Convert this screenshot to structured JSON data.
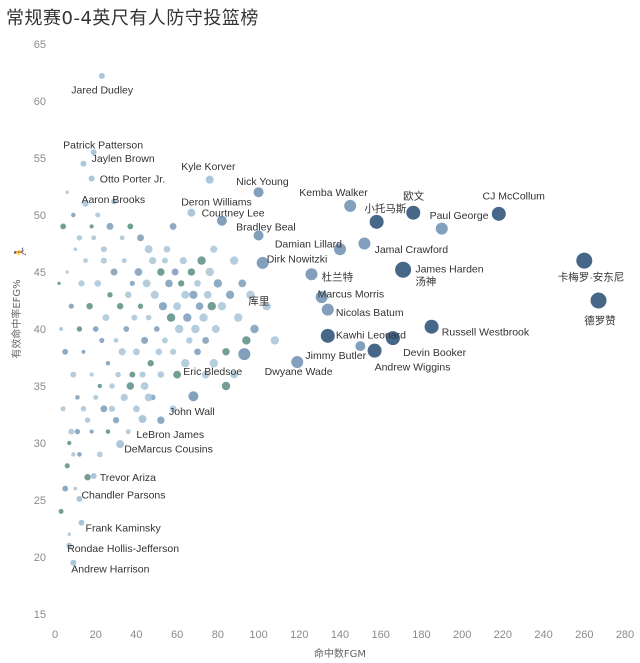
{
  "title": "常规赛0-4英尺有人防守投篮榜",
  "chart_data": {
    "type": "scatter",
    "title": "常规赛0-4英尺有人防守投篮榜",
    "xlabel": "命中数FGM",
    "ylabel": "有效命中率EFG%",
    "xlim": [
      0,
      280
    ],
    "ylim": [
      15,
      65
    ],
    "xticks": [
      0,
      20,
      40,
      60,
      80,
      100,
      120,
      140,
      160,
      180,
      200,
      220,
      240,
      260,
      280
    ],
    "yticks": [
      15,
      20,
      25,
      30,
      35,
      40,
      45,
      50,
      55,
      60,
      65
    ],
    "grid": false,
    "colors": {
      "dark": "#3d5f82",
      "mid": "#7b9bb8",
      "light": "#a9c4d8",
      "teal": "#5b8d84"
    },
    "labeled_points": [
      {
        "name": "Jared Dudley",
        "x": 23,
        "y": 62.2,
        "lx": 8,
        "ly": 61,
        "size": 3
      },
      {
        "name": "Patrick Patterson",
        "x": 19,
        "y": 55.5,
        "lx": 4,
        "ly": 56.2,
        "size": 3
      },
      {
        "name": "Jaylen Brown",
        "x": 14,
        "y": 54.5,
        "lx": 18,
        "ly": 55,
        "size": 3
      },
      {
        "name": "Otto Porter Jr.",
        "x": 18,
        "y": 53.2,
        "lx": 22,
        "ly": 53.2,
        "size": 3
      },
      {
        "name": "Aaron Brooks",
        "x": 29,
        "y": 51.2,
        "lx": 13,
        "ly": 51.4,
        "size": 3
      },
      {
        "name": "Kyle Korver",
        "x": 76,
        "y": 53.1,
        "lx": 62,
        "ly": 54.3,
        "size": 4
      },
      {
        "name": "Nick Young",
        "x": 100,
        "y": 52,
        "lx": 89,
        "ly": 53,
        "size": 5
      },
      {
        "name": "Deron Williams",
        "x": 67,
        "y": 50.2,
        "lx": 62,
        "ly": 51.2,
        "size": 4
      },
      {
        "name": "Courtney Lee",
        "x": 82,
        "y": 49.5,
        "lx": 72,
        "ly": 50.2,
        "size": 5
      },
      {
        "name": "Kemba Walker",
        "x": 145,
        "y": 50.8,
        "lx": 120,
        "ly": 52,
        "size": 6
      },
      {
        "name": "小托马斯",
        "x": 158,
        "y": 49.4,
        "lx": 152,
        "ly": 50.6,
        "size": 7
      },
      {
        "name": "欧文",
        "x": 176,
        "y": 50.2,
        "lx": 171,
        "ly": 51.7,
        "size": 7
      },
      {
        "name": "CJ McCollum",
        "x": 218,
        "y": 50.1,
        "lx": 210,
        "ly": 51.7,
        "size": 7
      },
      {
        "name": "Paul George",
        "x": 190,
        "y": 48.8,
        "lx": 184,
        "ly": 50,
        "size": 6
      },
      {
        "name": "Bradley Beal",
        "x": 100,
        "y": 48.2,
        "lx": 89,
        "ly": 49,
        "size": 5
      },
      {
        "name": "Damian Lillard",
        "x": 140,
        "y": 47,
        "lx": 108,
        "ly": 47.5,
        "size": 6
      },
      {
        "name": "Jamal Crawford",
        "x": 152,
        "y": 47.5,
        "lx": 157,
        "ly": 47,
        "size": 6
      },
      {
        "name": "Dirk Nowitzki",
        "x": 102,
        "y": 45.8,
        "lx": 104,
        "ly": 46.2,
        "size": 6
      },
      {
        "name": "杜兰特",
        "x": 126,
        "y": 44.8,
        "lx": 131,
        "ly": 44.6,
        "size": 6
      },
      {
        "name": "James Harden",
        "x": 171,
        "y": 45.2,
        "lx": 177,
        "ly": 45.3,
        "size": 8
      },
      {
        "name": "汤神",
        "x": 171,
        "y": 45.2,
        "lx": 177,
        "ly": 44.2,
        "size": 0
      },
      {
        "name": "卡梅罗·安东尼",
        "x": 260,
        "y": 46,
        "lx": 247,
        "ly": 44.6,
        "size": 8
      },
      {
        "name": "Marcus Morris",
        "x": 131,
        "y": 42.8,
        "lx": 129,
        "ly": 43.1,
        "size": 6
      },
      {
        "name": "Nicolas Batum",
        "x": 134,
        "y": 41.7,
        "lx": 138,
        "ly": 41.5,
        "size": 6
      },
      {
        "name": "德罗赞",
        "x": 267,
        "y": 42.5,
        "lx": 260,
        "ly": 40.8,
        "size": 8
      },
      {
        "name": "Kawhi Leonard",
        "x": 134,
        "y": 39.4,
        "lx": 138,
        "ly": 39.5,
        "size": 7
      },
      {
        "name": "Russell Westbrook",
        "x": 185,
        "y": 40.2,
        "lx": 190,
        "ly": 39.8,
        "size": 7
      },
      {
        "name": "Devin Booker",
        "x": 166,
        "y": 39.2,
        "lx": 171,
        "ly": 38,
        "size": 7
      },
      {
        "name": "Jimmy Butler",
        "x": 150,
        "y": 38.5,
        "lx": 123,
        "ly": 37.7,
        "size": 5
      },
      {
        "name": "Andrew Wiggins",
        "x": 157,
        "y": 38.1,
        "lx": 157,
        "ly": 36.7,
        "size": 7
      },
      {
        "name": "Eric Bledsoe",
        "x": 93,
        "y": 37.8,
        "lx": 63,
        "ly": 36.3,
        "size": 6
      },
      {
        "name": "Dwyane Wade",
        "x": 119,
        "y": 37.1,
        "lx": 103,
        "ly": 36.3,
        "size": 6
      },
      {
        "name": "John Wall",
        "x": 68,
        "y": 34.1,
        "lx": 56,
        "ly": 32.8,
        "size": 5
      },
      {
        "name": "LeBron James",
        "x": 43,
        "y": 32.1,
        "lx": 40,
        "ly": 30.8,
        "size": 4
      },
      {
        "name": "DeMarcus Cousins",
        "x": 32,
        "y": 29.9,
        "lx": 34,
        "ly": 29.5,
        "size": 4
      },
      {
        "name": "Trevor Ariza",
        "x": 19,
        "y": 27.1,
        "lx": 22,
        "ly": 27,
        "size": 3
      },
      {
        "name": "Chandler Parsons",
        "x": 12,
        "y": 25.1,
        "lx": 13,
        "ly": 25.5,
        "size": 3
      },
      {
        "name": "Frank Kaminsky",
        "x": 13,
        "y": 23,
        "lx": 15,
        "ly": 22.6,
        "size": 3
      },
      {
        "name": "Rondae Hollis-Jefferson",
        "x": 7,
        "y": 21,
        "lx": 6,
        "ly": 20.8,
        "size": 3
      },
      {
        "name": "Andrew Harrison",
        "x": 9,
        "y": 19.5,
        "lx": 8,
        "ly": 19,
        "size": 3
      }
    ],
    "annotations": [
      {
        "text": "库里",
        "x": 95,
        "y": 42.5
      }
    ],
    "background_points": [
      [
        2,
        44
      ],
      [
        3,
        40
      ],
      [
        4,
        33
      ],
      [
        5,
        38
      ],
      [
        6,
        45
      ],
      [
        7,
        30
      ],
      [
        8,
        42
      ],
      [
        9,
        36
      ],
      [
        10,
        47
      ],
      [
        11,
        34
      ],
      [
        12,
        40
      ],
      [
        13,
        44
      ],
      [
        14,
        38
      ],
      [
        15,
        46
      ],
      [
        16,
        32
      ],
      [
        17,
        42
      ],
      [
        18,
        36
      ],
      [
        19,
        48
      ],
      [
        20,
        40
      ],
      [
        21,
        44
      ],
      [
        22,
        35
      ],
      [
        23,
        39
      ],
      [
        24,
        47
      ],
      [
        25,
        41
      ],
      [
        26,
        37
      ],
      [
        27,
        43
      ],
      [
        28,
        33
      ],
      [
        29,
        45
      ],
      [
        30,
        39
      ],
      [
        31,
        36
      ],
      [
        32,
        42
      ],
      [
        33,
        38
      ],
      [
        34,
        46
      ],
      [
        35,
        40
      ],
      [
        36,
        43
      ],
      [
        37,
        35
      ],
      [
        38,
        44
      ],
      [
        39,
        41
      ],
      [
        40,
        38
      ],
      [
        41,
        45
      ],
      [
        42,
        42
      ],
      [
        43,
        36
      ],
      [
        44,
        39
      ],
      [
        45,
        44
      ],
      [
        46,
        41
      ],
      [
        47,
        37
      ],
      [
        48,
        46
      ],
      [
        49,
        43
      ],
      [
        50,
        40
      ],
      [
        51,
        38
      ],
      [
        52,
        45
      ],
      [
        53,
        42
      ],
      [
        54,
        39
      ],
      [
        55,
        47
      ],
      [
        56,
        44
      ],
      [
        57,
        41
      ],
      [
        58,
        38
      ],
      [
        59,
        45
      ],
      [
        60,
        42
      ],
      [
        61,
        40
      ],
      [
        62,
        44
      ],
      [
        63,
        46
      ],
      [
        64,
        43
      ],
      [
        65,
        41
      ],
      [
        66,
        39
      ],
      [
        67,
        45
      ],
      [
        68,
        43
      ],
      [
        69,
        40
      ],
      [
        70,
        44
      ],
      [
        71,
        42
      ],
      [
        72,
        46
      ],
      [
        73,
        41
      ],
      [
        74,
        39
      ],
      [
        75,
        43
      ],
      [
        76,
        45
      ],
      [
        77,
        42
      ],
      [
        78,
        47
      ],
      [
        79,
        40
      ],
      [
        80,
        44
      ],
      [
        82,
        42
      ],
      [
        84,
        38
      ],
      [
        86,
        43
      ],
      [
        88,
        46
      ],
      [
        90,
        41
      ],
      [
        92,
        44
      ],
      [
        94,
        39
      ],
      [
        96,
        43
      ],
      [
        98,
        40
      ],
      [
        104,
        42
      ],
      [
        108,
        39
      ],
      [
        6,
        28
      ],
      [
        8,
        31
      ],
      [
        10,
        26
      ],
      [
        12,
        29
      ],
      [
        14,
        33
      ],
      [
        16,
        27
      ],
      [
        18,
        31
      ],
      [
        20,
        34
      ],
      [
        22,
        29
      ],
      [
        24,
        33
      ],
      [
        26,
        31
      ],
      [
        28,
        35
      ],
      [
        30,
        32
      ],
      [
        34,
        34
      ],
      [
        36,
        31
      ],
      [
        38,
        36
      ],
      [
        40,
        33
      ],
      [
        44,
        35
      ],
      [
        48,
        34
      ],
      [
        52,
        36
      ],
      [
        3,
        24
      ],
      [
        5,
        26
      ],
      [
        7,
        22
      ],
      [
        9,
        29
      ],
      [
        11,
        31
      ],
      [
        4,
        49
      ],
      [
        6,
        52
      ],
      [
        9,
        50
      ],
      [
        12,
        48
      ],
      [
        15,
        51
      ],
      [
        18,
        49
      ],
      [
        21,
        50
      ],
      [
        24,
        46
      ],
      [
        27,
        49
      ],
      [
        33,
        48
      ],
      [
        37,
        49
      ],
      [
        42,
        48
      ],
      [
        46,
        47
      ],
      [
        54,
        46
      ],
      [
        58,
        49
      ],
      [
        60,
        36
      ],
      [
        64,
        37
      ],
      [
        70,
        38
      ],
      [
        74,
        36
      ],
      [
        78,
        37
      ],
      [
        84,
        35
      ],
      [
        88,
        36
      ],
      [
        58,
        33
      ],
      [
        52,
        32
      ],
      [
        46,
        34
      ]
    ]
  }
}
